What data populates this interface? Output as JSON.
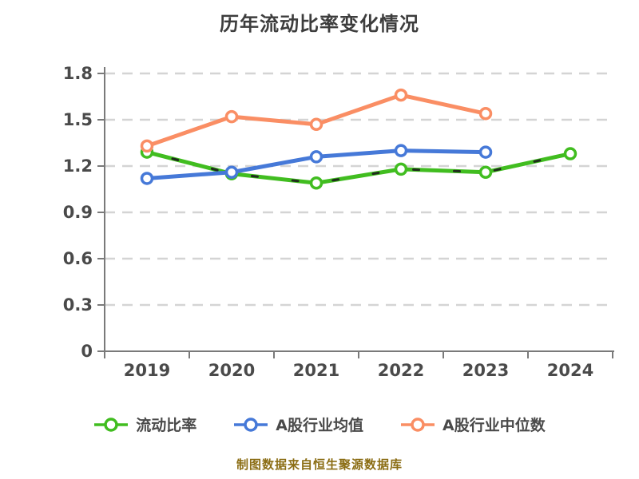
{
  "title": {
    "text": "历年流动比率变化情况",
    "color": "#3d3d3d"
  },
  "footer": {
    "text": "制图数据来自恒生聚源数据库",
    "color": "#8b6d14"
  },
  "legend": {
    "position": "bottom",
    "items": [
      {
        "label": "流动比率",
        "color": "#41bd20"
      },
      {
        "label": "A股行业均值",
        "color": "#4679d8"
      },
      {
        "label": "A股行业中位数",
        "color": "#fa8e64"
      }
    ]
  },
  "chart_data": {
    "type": "line",
    "title": "历年流动比率变化情况",
    "categories": [
      "2019",
      "2020",
      "2021",
      "2022",
      "2023",
      "2024"
    ],
    "series": [
      {
        "name": "流动比率",
        "slug": "current-ratio",
        "color": "#41bd20",
        "marker": "hollow-circle",
        "line_style": "solid-with-dark-dashes",
        "values": [
          1.29,
          1.15,
          1.09,
          1.18,
          1.16,
          1.28
        ]
      },
      {
        "name": "A股行业均值",
        "slug": "industry-average",
        "color": "#4679d8",
        "marker": "hollow-circle",
        "line_style": "solid",
        "values": [
          1.12,
          1.16,
          1.26,
          1.3,
          1.29,
          null
        ]
      },
      {
        "name": "A股行业中位数",
        "slug": "industry-median",
        "color": "#fa8e64",
        "marker": "hollow-circle",
        "line_style": "solid",
        "values": [
          1.33,
          1.52,
          1.47,
          1.66,
          1.54,
          null
        ]
      }
    ],
    "xlabel": "",
    "ylabel": "",
    "ylim": [
      0,
      1.8
    ],
    "yticks": [
      0,
      0.3,
      0.6,
      0.9,
      1.2,
      1.5,
      1.8
    ],
    "grid": "horizontal-dashed",
    "legend_position": "bottom",
    "axis_color": "#7a7a7a",
    "grid_color": "#d4d4d4",
    "tick_label_color": "#4a4a4a"
  }
}
